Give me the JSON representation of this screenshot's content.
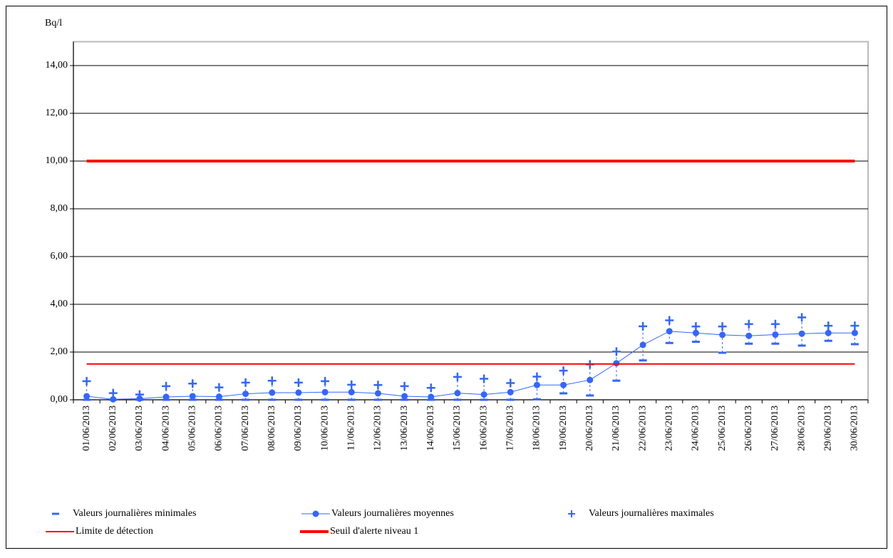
{
  "chart_data": {
    "type": "line",
    "y_label": "Bq/l",
    "categories": [
      "01/06/2013",
      "02/06/2013",
      "03/06/2013",
      "04/06/2013",
      "05/06/2013",
      "06/06/2013",
      "07/06/2013",
      "08/06/2013",
      "09/06/2013",
      "10/06/2013",
      "11/06/2013",
      "12/06/2013",
      "13/06/2013",
      "14/06/2013",
      "15/06/2013",
      "16/06/2013",
      "17/06/2013",
      "18/06/2013",
      "19/06/2013",
      "20/06/2013",
      "21/06/2013",
      "22/06/2013",
      "23/06/2013",
      "24/06/2013",
      "25/06/2013",
      "26/06/2013",
      "27/06/2013",
      "28/06/2013",
      "29/06/2013",
      "30/06/2013"
    ],
    "ylim": [
      0,
      15
    ],
    "yticks": [
      {
        "value": 0,
        "label": "0,00"
      },
      {
        "value": 2,
        "label": "2,00"
      },
      {
        "value": 4,
        "label": "4,00"
      },
      {
        "value": 6,
        "label": "6,00"
      },
      {
        "value": 8,
        "label": "8,00"
      },
      {
        "value": 10,
        "label": "10,00"
      },
      {
        "value": 12,
        "label": "12,00"
      },
      {
        "value": 14,
        "label": "14,00"
      }
    ],
    "grid": true,
    "high_low_lines": true,
    "series": [
      {
        "name": "Valeurs journalières minimales",
        "color": "#3366ff",
        "marker": "dash",
        "line": false,
        "values": [
          0,
          0,
          0,
          0,
          0,
          0,
          0,
          0,
          0,
          0,
          0,
          0,
          0,
          0,
          0,
          0,
          0,
          0.02,
          0.27,
          0.18,
          0.8,
          1.65,
          2.38,
          2.43,
          1.97,
          2.35,
          2.35,
          2.27,
          2.47,
          2.33
        ]
      },
      {
        "name": "Valeurs journalières moyennes",
        "color": "#3366ff",
        "marker": "circle",
        "line": true,
        "line_width": 1,
        "values": [
          0.15,
          0.02,
          0.05,
          0.12,
          0.15,
          0.13,
          0.25,
          0.3,
          0.3,
          0.32,
          0.32,
          0.27,
          0.15,
          0.12,
          0.28,
          0.22,
          0.32,
          0.62,
          0.62,
          0.83,
          1.53,
          2.3,
          2.87,
          2.8,
          2.72,
          2.68,
          2.73,
          2.77,
          2.8,
          2.8
        ]
      },
      {
        "name": "Valeurs journalières maximales",
        "color": "#3366ff",
        "marker": "plus",
        "line": false,
        "values": [
          0.78,
          0.28,
          0.22,
          0.57,
          0.68,
          0.52,
          0.72,
          0.8,
          0.72,
          0.78,
          0.63,
          0.62,
          0.57,
          0.5,
          0.96,
          0.88,
          0.7,
          0.97,
          1.22,
          1.48,
          2.02,
          3.08,
          3.33,
          3.07,
          3.07,
          3.17,
          3.17,
          3.45,
          3.1,
          3.1
        ]
      },
      {
        "name": "Limite de détection",
        "color": "#ff0000",
        "marker": "none",
        "line": true,
        "line_width": 2,
        "values": [
          1.5,
          1.5,
          1.5,
          1.5,
          1.5,
          1.5,
          1.5,
          1.5,
          1.5,
          1.5,
          1.5,
          1.5,
          1.5,
          1.5,
          1.5,
          1.5,
          1.5,
          1.5,
          1.5,
          1.5,
          1.5,
          1.5,
          1.5,
          1.5,
          1.5,
          1.5,
          1.5,
          1.5,
          1.5,
          1.5
        ]
      },
      {
        "name": "Seuil d'alerte niveau 1",
        "color": "#ff0000",
        "marker": "none",
        "line": true,
        "line_width": 4,
        "values": [
          10,
          10,
          10,
          10,
          10,
          10,
          10,
          10,
          10,
          10,
          10,
          10,
          10,
          10,
          10,
          10,
          10,
          10,
          10,
          10,
          10,
          10,
          10,
          10,
          10,
          10,
          10,
          10,
          10,
          10
        ]
      }
    ]
  }
}
